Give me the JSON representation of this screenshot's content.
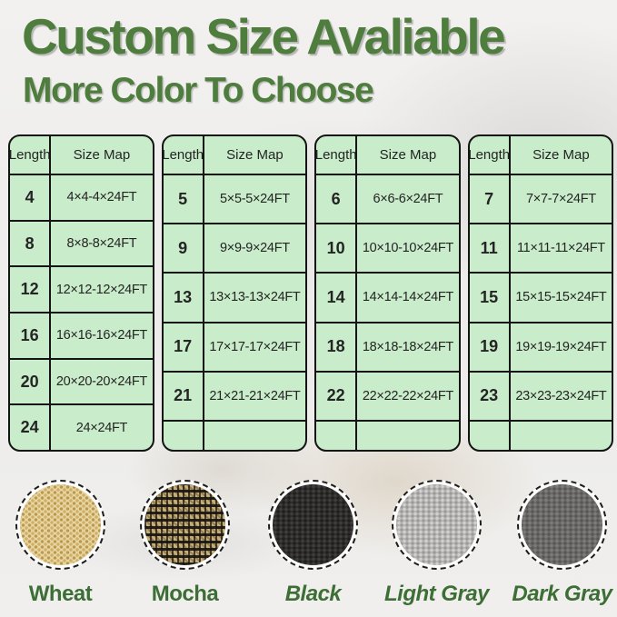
{
  "page": {
    "title": "Custom Size Avaliable",
    "subtitle": "More Color To Choose",
    "title_color": "#4e7d3e",
    "label_color": "#3c6e35",
    "table_fill": "#c9ecca",
    "table_border": "#141414"
  },
  "tables": [
    {
      "columns": {
        "length": "Length",
        "size": "Size Map"
      },
      "rows": [
        {
          "length": "4",
          "size": "4×4-4×24FT"
        },
        {
          "length": "8",
          "size": "8×8-8×24FT"
        },
        {
          "length": "12",
          "size": "12×12-12×24FT"
        },
        {
          "length": "16",
          "size": "16×16-16×24FT"
        },
        {
          "length": "20",
          "size": "20×20-20×24FT"
        },
        {
          "length": "24",
          "size": "24×24FT"
        }
      ]
    },
    {
      "columns": {
        "length": "Length",
        "size": "Size Map"
      },
      "rows": [
        {
          "length": "5",
          "size": "5×5-5×24FT"
        },
        {
          "length": "9",
          "size": "9×9-9×24FT"
        },
        {
          "length": "13",
          "size": "13×13-13×24FT"
        },
        {
          "length": "17",
          "size": "17×17-17×24FT"
        },
        {
          "length": "21",
          "size": "21×21-21×24FT"
        },
        {
          "length": "",
          "size": ""
        }
      ]
    },
    {
      "columns": {
        "length": "Length",
        "size": "Size Map"
      },
      "rows": [
        {
          "length": "6",
          "size": "6×6-6×24FT"
        },
        {
          "length": "10",
          "size": "10×10-10×24FT"
        },
        {
          "length": "14",
          "size": "14×14-14×24FT"
        },
        {
          "length": "18",
          "size": "18×18-18×24FT"
        },
        {
          "length": "22",
          "size": "22×22-22×24FT"
        },
        {
          "length": "",
          "size": ""
        }
      ]
    },
    {
      "columns": {
        "length": "Length",
        "size": "Size Map"
      },
      "rows": [
        {
          "length": "7",
          "size": "7×7-7×24FT"
        },
        {
          "length": "11",
          "size": "11×11-11×24FT"
        },
        {
          "length": "15",
          "size": "15×15-15×24FT"
        },
        {
          "length": "19",
          "size": "19×19-19×24FT"
        },
        {
          "length": "23",
          "size": "23×23-23×24FT"
        },
        {
          "length": "",
          "size": ""
        }
      ]
    }
  ],
  "swatches": [
    {
      "label": "Wheat",
      "key": "wheat",
      "base": "#e7d5a2",
      "italic": false
    },
    {
      "label": "Mocha",
      "key": "mocha",
      "base": "#c9ae74",
      "italic": false
    },
    {
      "label": "Black",
      "key": "black",
      "base": "#2e2d2b",
      "italic": true
    },
    {
      "label": "Light Gray",
      "key": "light-gray",
      "base": "#b6b5b3",
      "italic": true
    },
    {
      "label": "Dark Gray",
      "key": "dark-gray",
      "base": "#6b6a68",
      "italic": true
    }
  ]
}
